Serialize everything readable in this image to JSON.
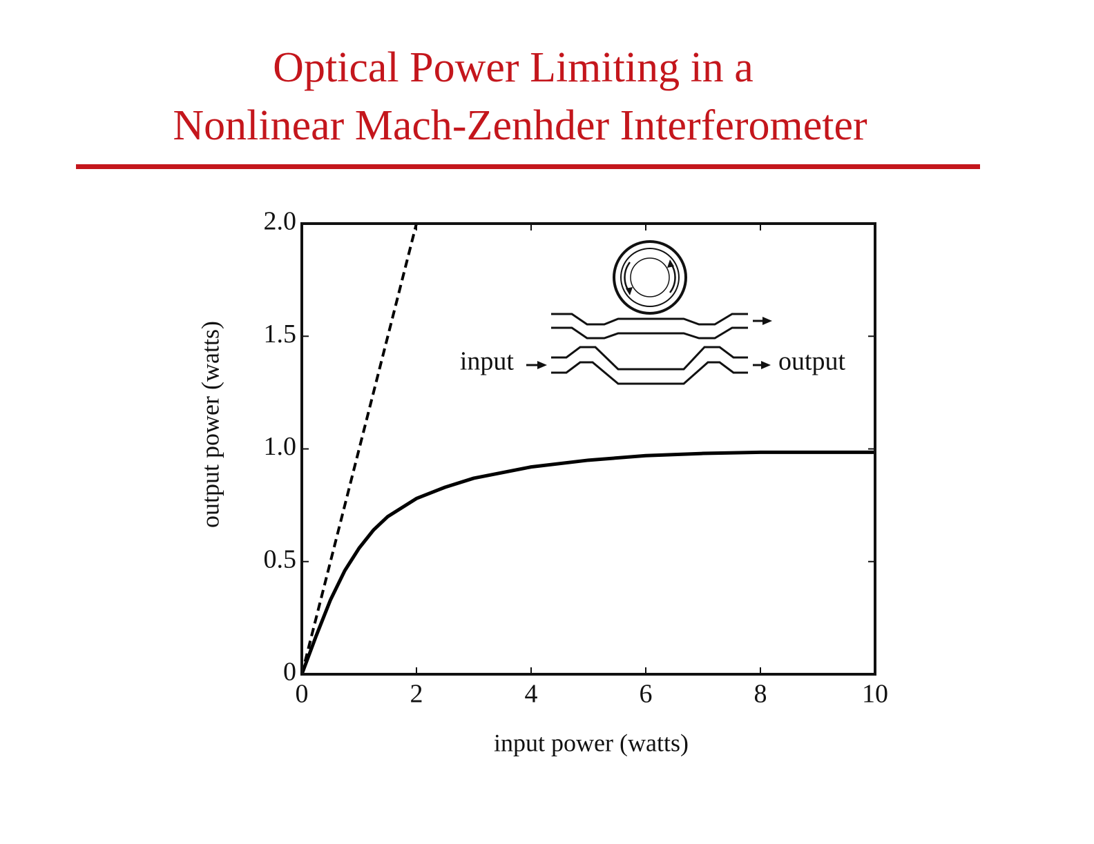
{
  "chart_data": {
    "type": "line",
    "title": [
      "Optical Power Limiting in a",
      "Nonlinear Mach-Zenhder Interferometer"
    ],
    "title_color": "#c4161c",
    "x_label": "input power (watts)",
    "y_label": "output power (watts)",
    "annotations": [
      "input",
      "output"
    ],
    "xlim": [
      0,
      10
    ],
    "xticks": [
      0,
      2,
      4,
      6,
      8,
      10
    ],
    "ylim": [
      0,
      2
    ],
    "yticks": [
      0,
      0.5,
      {
        "value": 1,
        "label": "1.0"
      },
      1.5,
      {
        "value": 2,
        "label": "2.0"
      }
    ],
    "grid": false,
    "series": [
      {
        "color": "#000000",
        "linestyle": "dashed",
        "x": [
          0,
          2
        ],
        "values": [
          0,
          2
        ]
      },
      {
        "color": "#000000",
        "linestyle": "solid",
        "x": [
          0,
          0.25,
          0.5,
          0.75,
          1,
          1.25,
          1.5,
          2,
          2.5,
          3,
          4,
          5,
          6,
          7,
          8,
          10
        ],
        "values": [
          0,
          0.17,
          0.33,
          0.46,
          0.56,
          0.64,
          0.7,
          0.78,
          0.83,
          0.87,
          0.92,
          0.95,
          0.97,
          0.98,
          0.985,
          0.985
        ]
      }
    ]
  }
}
